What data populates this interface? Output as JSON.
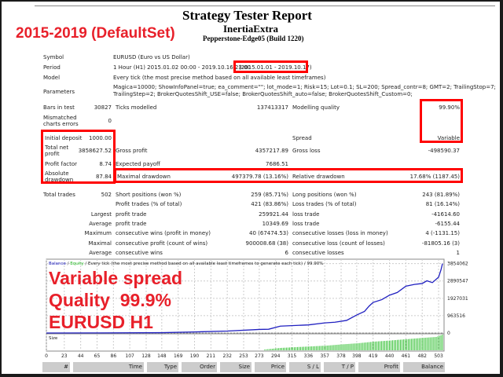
{
  "header": {
    "title": "Strategy Tester Report",
    "expert": "InertiaExtra",
    "server": "Pepperstone-Edge05 (Build 1220)"
  },
  "overlay": {
    "period_label": "2015-2019 (DefaultSet)",
    "line1": "Variable spread",
    "line2": "Quality  99.9%",
    "line3": "EURUSD H1"
  },
  "info": {
    "symbol_label": "Symbol",
    "symbol": "EURUSD (Euro vs US Dollar)",
    "period_label": "Period",
    "period": "1 Hour (H1) 2015.01.02 00:00 - 2019.10.16 23:00",
    "period_range": "(2015.01.01 - 2019.10.17)",
    "model_label": "Model",
    "model": "Every tick (the most precise method based on all available least timeframes)",
    "params_label": "Parameters",
    "params1": "Magica=10000; ShowInfoPanel=true; ea_comment=\"\"; lot_mode=1; Risk=15; Lot=0.1; SL=200; Spread_contr=8; GMT=2; TrailingStop=7;",
    "params2": "TrailingStep=2; BrokerQuotesShift_USE=false; BrokerQuotesShift_auto=false; BrokerQuotesShift_Custom=0;"
  },
  "stats": {
    "bars_label": "Bars in test",
    "bars": "30827",
    "ticks_label": "Ticks modelled",
    "ticks": "137413317",
    "quality_label": "Modelling quality",
    "quality": "99.90%",
    "mismatch_label1": "Mismatched",
    "mismatch_label2": "charts errors",
    "mismatch": "0",
    "spread_label": "Spread",
    "spread": "Variable",
    "deposit_label": "Initial deposit",
    "deposit": "1000.00",
    "netprofit_label1": "Total net",
    "netprofit_label2": "profit",
    "netprofit": "3858627.52",
    "grossprofit_label": "Gross profit",
    "grossprofit": "4357217.89",
    "grossloss_label": "Gross loss",
    "grossloss": "-498590.37",
    "pf_label": "Profit factor",
    "pf": "8.74",
    "payoff_label": "Expected payoff",
    "payoff": "7686.51",
    "absdd_label1": "Absolute",
    "absdd_label2": "drawdown",
    "absdd": "87.84",
    "maxdd_label": "Maximal drawdown",
    "maxdd": "497379.78 (13.16%)",
    "reldd_label": "Relative drawdown",
    "reldd": "17.68% (1187.45)"
  },
  "trades": [
    {
      "a": "Total trades",
      "b": "502",
      "c": "Short positions (won %)",
      "d": "259 (85.71%)",
      "e": "Long positions (won %)",
      "f": "243 (81.89%)"
    },
    {
      "a": "",
      "b": "",
      "c": "Profit trades (% of total)",
      "d": "421 (83.86%)",
      "e": "Loss trades (% of total)",
      "f": "81 (16.14%)"
    },
    {
      "a": "Largest",
      "b": "",
      "c": "profit trade",
      "d": "259921.44",
      "e": "loss trade",
      "f": "-41614.60"
    },
    {
      "a": "Average",
      "b": "",
      "c": "profit trade",
      "d": "10349.69",
      "e": "loss trade",
      "f": "-6155.44"
    },
    {
      "a": "Maximum",
      "b": "",
      "c": "consecutive wins (profit in money)",
      "d": "40 (67474.53)",
      "e": "consecutive losses (loss in money)",
      "f": "4 (-1131.15)"
    },
    {
      "a": "Maximal",
      "b": "",
      "c": "consecutive profit (count of wins)",
      "d": "900008.68 (38)",
      "e": "consecutive loss (count of losses)",
      "f": "-81805.16 (3)"
    },
    {
      "a": "Average",
      "b": "",
      "c": "consecutive wins",
      "d": "6",
      "e": "consecutive losses",
      "f": "1"
    }
  ],
  "chart": {
    "legend_balance": "Balance",
    "legend_equity": "Equity",
    "legend_rest": " / Every tick (the most precise method based on all available least timeframes to generate each tick) / 99.90%",
    "size_label": "Size",
    "y_ticks": [
      "3854062",
      "2890547",
      "1927031",
      "963516",
      "0"
    ],
    "x_ticks": [
      "0",
      "23",
      "44",
      "65",
      "86",
      "107",
      "128",
      "148",
      "169",
      "190",
      "211",
      "232",
      "253",
      "273",
      "294",
      "315",
      "336",
      "357",
      "378",
      "398",
      "419",
      "440",
      "461",
      "482",
      "503"
    ],
    "balance_color": "#2020c0",
    "size_color": "#22bb22",
    "balance": [
      [
        0,
        1000
      ],
      [
        60,
        5000
      ],
      [
        148,
        20000
      ],
      [
        190,
        60000
      ],
      [
        232,
        110000
      ],
      [
        273,
        200000
      ],
      [
        285,
        210000
      ],
      [
        300,
        380000
      ],
      [
        336,
        450000
      ],
      [
        357,
        560000
      ],
      [
        370,
        600000
      ],
      [
        385,
        700000
      ],
      [
        398,
        1000000
      ],
      [
        408,
        1200000
      ],
      [
        414,
        1500000
      ],
      [
        419,
        1700000
      ],
      [
        430,
        1850000
      ],
      [
        440,
        2100000
      ],
      [
        450,
        2250000
      ],
      [
        461,
        2600000
      ],
      [
        472,
        2700000
      ],
      [
        482,
        2750000
      ],
      [
        488,
        2900000
      ],
      [
        495,
        2800000
      ],
      [
        503,
        3100000
      ],
      [
        506,
        3500000
      ],
      [
        508,
        3854062
      ]
    ],
    "size": [
      [
        280,
        0.05
      ],
      [
        300,
        0.15
      ],
      [
        320,
        0.2
      ],
      [
        340,
        0.25
      ],
      [
        360,
        0.3
      ],
      [
        380,
        0.38
      ],
      [
        400,
        0.45
      ],
      [
        420,
        0.55
      ],
      [
        440,
        0.62
      ],
      [
        460,
        0.7
      ],
      [
        480,
        0.78
      ],
      [
        500,
        0.85
      ],
      [
        508,
        1.0
      ]
    ]
  },
  "table_headers": [
    "#",
    "Time",
    "Type",
    "Order",
    "Size",
    "Price",
    "S / L",
    "T / P",
    "Profit",
    "Balance"
  ]
}
